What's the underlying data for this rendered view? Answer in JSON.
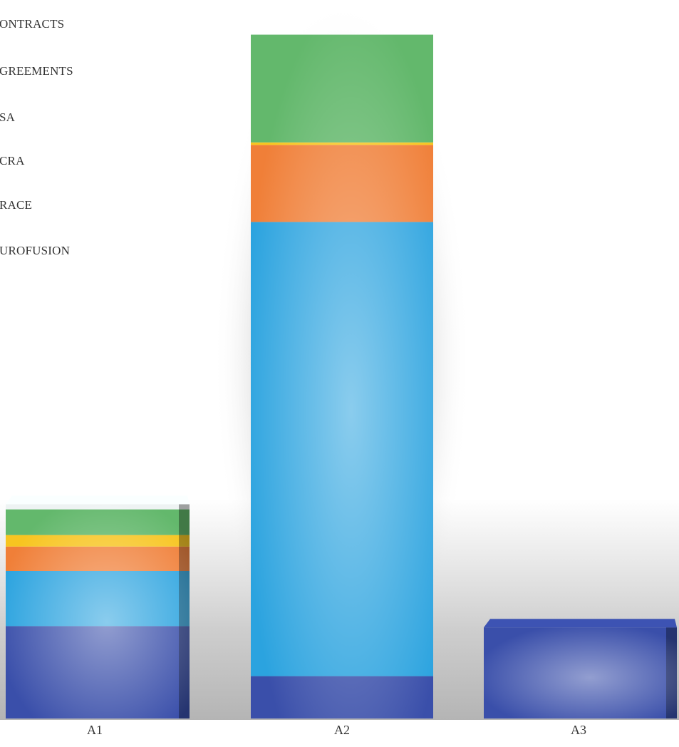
{
  "chart_data": {
    "type": "bar",
    "stacked": true,
    "title": "",
    "xlabel": "",
    "ylabel": "",
    "categories": [
      "A1",
      "A2",
      "A3"
    ],
    "legend": {
      "placement": "top-left",
      "entries": [
        "ONTRACTS",
        "GREEMENTS",
        "SA",
        "CRA",
        "RACE",
        "UROFUSION"
      ]
    },
    "series": [
      {
        "name": "UROFUSION",
        "color": "#3a4faa",
        "values": [
          72,
          33,
          71
        ]
      },
      {
        "name": "RACE",
        "color": "#2ba3df",
        "values": [
          43,
          354,
          0
        ]
      },
      {
        "name": "CRA",
        "color": "#f07f38",
        "values": [
          19,
          60,
          0
        ]
      },
      {
        "name": "SA",
        "color": "#f7c520",
        "values": [
          9,
          2,
          0
        ]
      },
      {
        "name": "GREEMENTS",
        "color": "#63b86c",
        "values": [
          20,
          84,
          0
        ]
      },
      {
        "name": "ONTRACTS",
        "color": "#eef3f3",
        "values": [
          4,
          0,
          0
        ]
      }
    ],
    "grid": false,
    "three_d": true
  }
}
